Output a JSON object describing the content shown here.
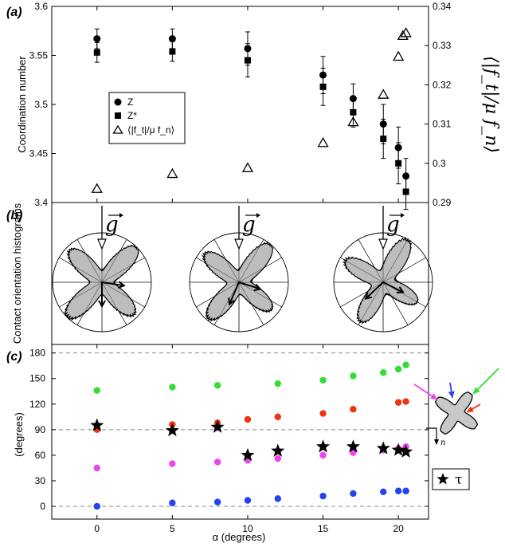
{
  "panels": {
    "a": "(a)",
    "b": "(b)",
    "c": "(c)"
  },
  "chart_data": [
    {
      "type": "scatter",
      "panel": "(a)",
      "ylabel": "Coordination number",
      "y2label": "⟨|f_t|/μ f_n⟩",
      "ylim": [
        3.4,
        3.6
      ],
      "y2lim": [
        0.29,
        0.34
      ],
      "xlim": [
        -3,
        22
      ],
      "yticks": [
        "3.4",
        "3.45",
        "3.5",
        "3.55",
        "3.6"
      ],
      "y2ticks": [
        "0.29",
        "0.3",
        "0.31",
        "0.32",
        "0.33",
        "0.34"
      ],
      "legend": {
        "position": "center-left",
        "entries": [
          "Z",
          "Z*",
          "⟨|f_t|/μ f_n⟩"
        ]
      },
      "series": [
        {
          "name": "Z",
          "marker": "circle",
          "axis": "left",
          "x": [
            0,
            5,
            10,
            15,
            17,
            19,
            20,
            20.5
          ],
          "y": [
            3.567,
            3.567,
            3.557,
            3.53,
            3.506,
            3.48,
            3.456,
            3.427
          ],
          "err": [
            0.01,
            0.01,
            0.017,
            0.019,
            0.015,
            0.02,
            0.021,
            0.018
          ]
        },
        {
          "name": "Z*",
          "marker": "square",
          "axis": "left",
          "x": [
            0,
            5,
            10,
            15,
            17,
            19,
            20,
            20.5
          ],
          "y": [
            3.553,
            3.554,
            3.545,
            3.518,
            3.492,
            3.465,
            3.44,
            3.411
          ],
          "err": [
            0.01,
            0.01,
            0.017,
            0.019,
            0.015,
            0.02,
            0.021,
            0.018
          ]
        },
        {
          "name": "⟨|f_t|/μ f_n⟩",
          "marker": "triangle",
          "axis": "right",
          "x": [
            0,
            5,
            10,
            15,
            17,
            19,
            20,
            20.3,
            20.5
          ],
          "y": [
            0.2935,
            0.2973,
            0.2988,
            0.3052,
            0.3105,
            0.3175,
            0.3272,
            0.3325,
            0.3332
          ]
        }
      ]
    },
    {
      "type": "polar-histogram",
      "panel": "(b)",
      "ylabel": "Contact orientation histograms",
      "vector_label": "g",
      "alpha_deg": [
        0,
        10,
        20
      ],
      "lobe_angles_deg": [
        [
          45,
          135,
          225,
          315
        ],
        [
          50,
          140,
          230,
          320
        ],
        [
          60,
          150,
          240,
          330
        ]
      ]
    },
    {
      "type": "scatter",
      "panel": "(c)",
      "xlabel": "α (degrees)",
      "ylabel": "(degrees)",
      "xlim": [
        -3,
        22
      ],
      "ylim": [
        -15,
        190
      ],
      "xticks": [
        "0",
        "5",
        "10",
        "15",
        "20"
      ],
      "yticks": [
        "0",
        "30",
        "60",
        "90",
        "120",
        "150",
        "180"
      ],
      "dashed_lines": [
        0,
        90,
        180
      ],
      "legend": {
        "position": "right",
        "entries": [
          "τ"
        ]
      },
      "series": [
        {
          "name": "",
          "color": "#33dd33",
          "marker": "circle",
          "x": [
            0,
            5,
            8,
            12,
            15,
            17,
            19,
            20,
            20.5
          ],
          "y": [
            136,
            140,
            142,
            144,
            148,
            153,
            157,
            161,
            166
          ]
        },
        {
          "name": "",
          "color": "#ee3311",
          "marker": "circle",
          "x": [
            0,
            5,
            8,
            10,
            12,
            15,
            17,
            20,
            20.5
          ],
          "y": [
            90,
            96,
            98,
            102,
            105,
            109,
            114,
            122,
            123
          ]
        },
        {
          "name": "",
          "color": "#ee44ee",
          "marker": "circle",
          "x": [
            0,
            5,
            8,
            10,
            12,
            15,
            17,
            19,
            20,
            20.5
          ],
          "y": [
            45,
            50,
            52,
            54,
            56,
            60,
            63,
            66,
            68,
            70
          ]
        },
        {
          "name": "",
          "color": "#2244ee",
          "marker": "circle",
          "x": [
            0,
            5,
            8,
            10,
            12,
            15,
            17,
            19,
            20,
            20.5
          ],
          "y": [
            0,
            4,
            5,
            7,
            9,
            12,
            15,
            17,
            18,
            18
          ]
        },
        {
          "name": "τ",
          "color": "#000000",
          "marker": "star",
          "x": [
            0,
            5,
            8,
            10,
            12,
            15,
            17,
            19,
            20,
            20.5
          ],
          "y": [
            95,
            89,
            93,
            60,
            65,
            70,
            70,
            68,
            66,
            64
          ]
        }
      ],
      "inset": {
        "arrows": [
          "#ee44ee",
          "#2244ee",
          "#33dd33",
          "#ee3311"
        ],
        "label": "n"
      }
    }
  ]
}
